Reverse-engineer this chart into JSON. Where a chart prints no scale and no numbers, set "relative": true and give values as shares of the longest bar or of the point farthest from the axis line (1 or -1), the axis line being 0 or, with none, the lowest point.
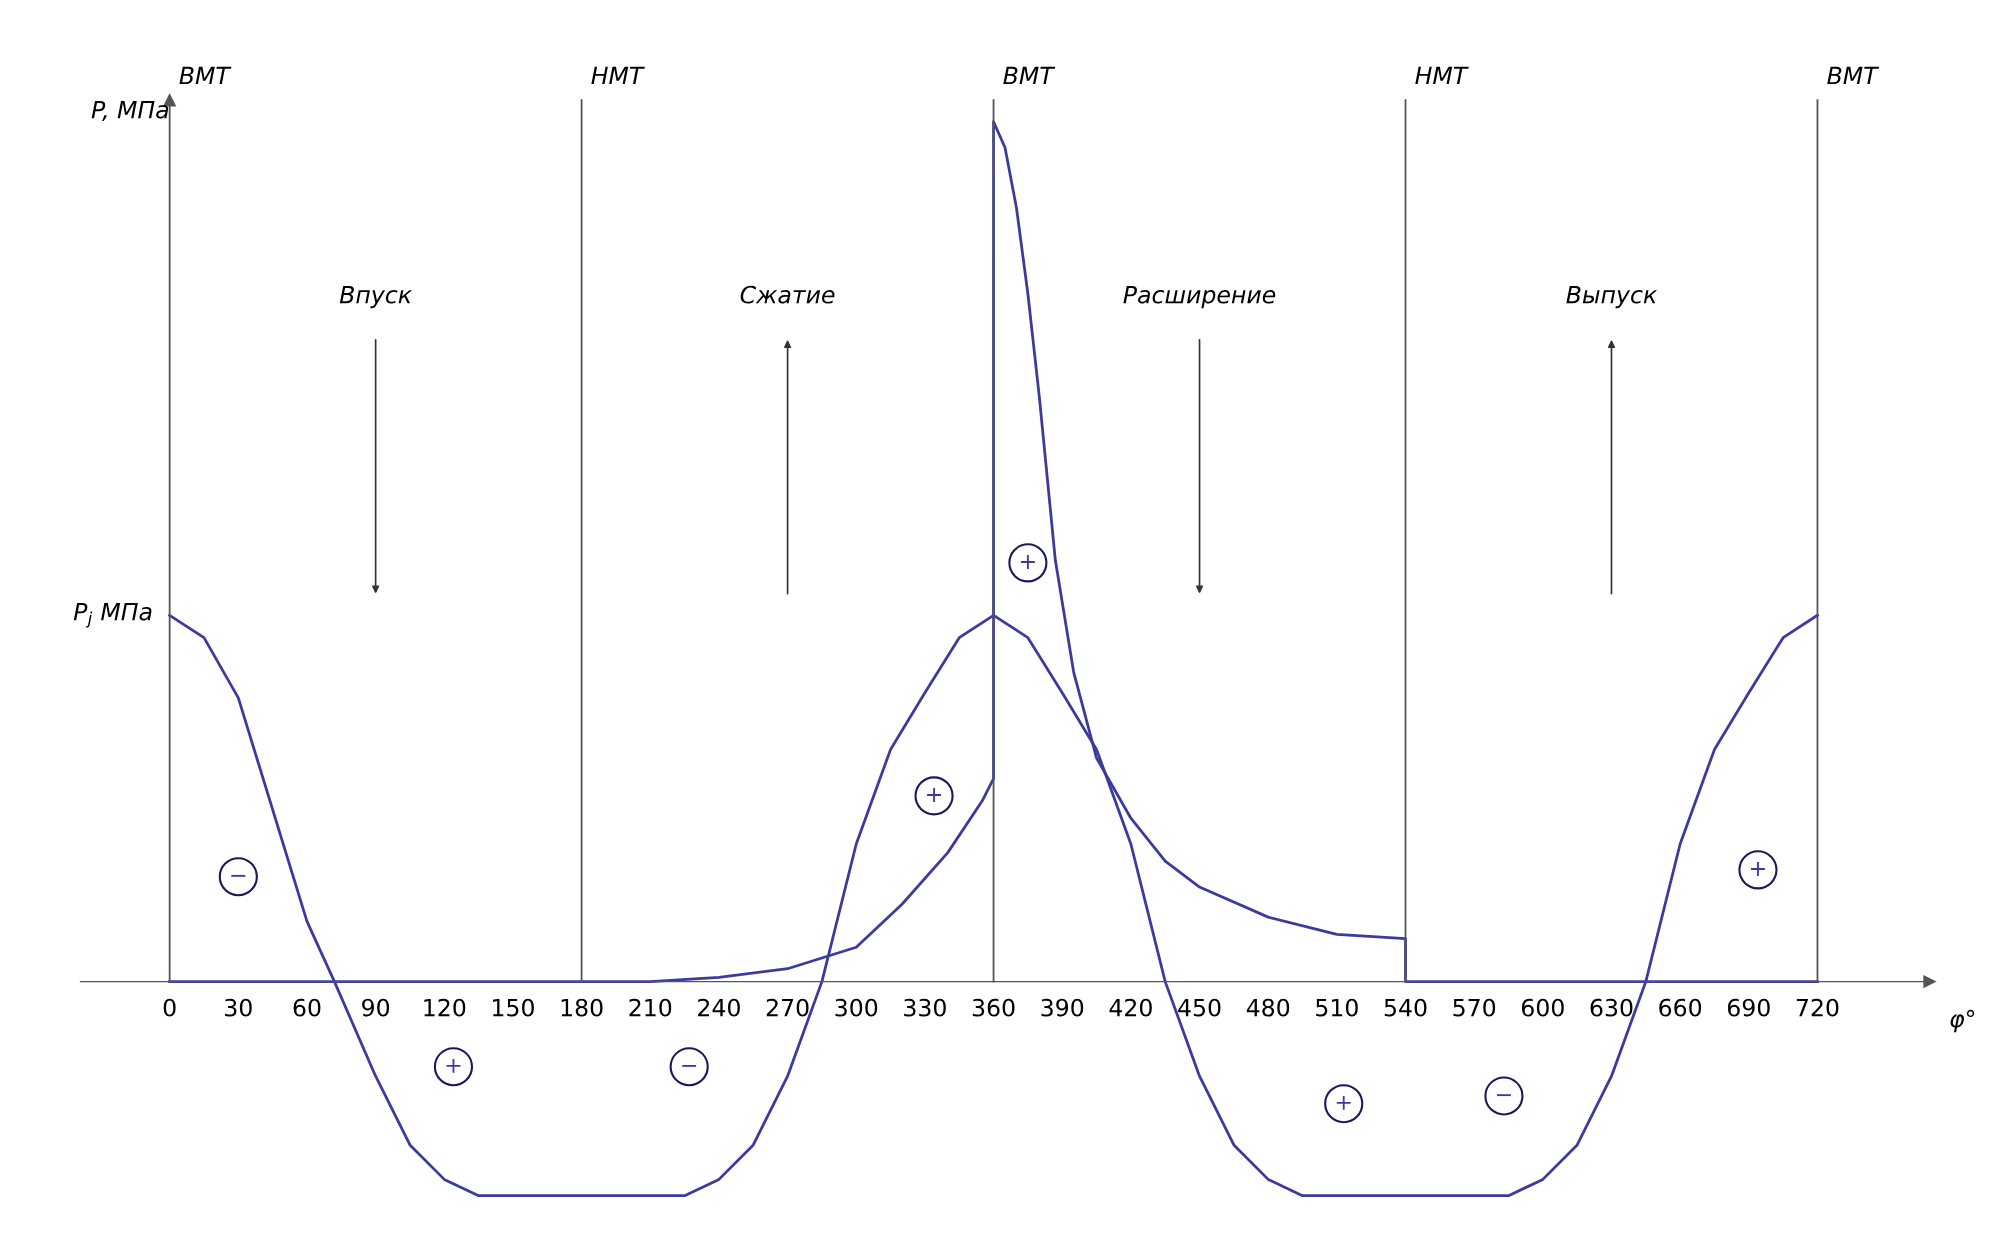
{
  "chart_data": {
    "type": "line",
    "relative": true,
    "xlabel": "φ°",
    "ylabel": "P, МПа",
    "xlim": [
      -39,
      769
    ],
    "xticks": [
      0,
      30,
      60,
      90,
      120,
      150,
      180,
      210,
      240,
      270,
      300,
      330,
      360,
      390,
      420,
      450,
      480,
      510,
      540,
      570,
      600,
      630,
      660,
      690,
      720
    ],
    "grid": false,
    "legend": false,
    "marker": "none",
    "line_style": "solid",
    "series": [
      {
        "color": "#3b3b9e",
        "x": [
          0,
          15,
          30,
          45,
          54,
          60,
          72,
          90,
          105,
          120,
          135,
          180,
          225,
          240,
          255,
          270,
          285,
          300,
          315,
          330,
          345,
          360,
          375,
          390,
          405,
          420,
          435,
          450,
          465,
          480,
          495,
          540,
          585,
          600,
          615,
          630,
          645,
          660,
          675,
          690,
          705,
          720
        ],
        "values": [
          0.426,
          0.4,
          0.33,
          0.2,
          0.122,
          0.07,
          0,
          -0.11,
          -0.19,
          -0.23,
          -0.249,
          -0.249,
          -0.249,
          -0.23,
          -0.19,
          -0.11,
          0,
          0.16,
          0.27,
          0.336,
          0.4,
          0.426,
          0.4,
          0.336,
          0.27,
          0.16,
          0,
          -0.11,
          -0.19,
          -0.23,
          -0.249,
          -0.249,
          -0.249,
          -0.23,
          -0.19,
          -0.11,
          0,
          0.16,
          0.27,
          0.336,
          0.4,
          0.426
        ]
      },
      {
        "color": "#3b3b9e",
        "x": [
          0,
          180,
          210,
          240,
          270,
          300,
          320,
          340,
          355,
          360,
          360,
          365,
          370,
          375,
          380,
          387,
          395,
          405,
          420,
          435,
          450,
          480,
          510,
          540,
          540,
          720
        ],
        "values": [
          0,
          0,
          0,
          0.005,
          0.015,
          0.04,
          0.09,
          0.15,
          0.21,
          0.236,
          1.0,
          0.97,
          0.9,
          0.8,
          0.68,
          0.49,
          0.36,
          0.26,
          0.19,
          0.14,
          0.11,
          0.075,
          0.055,
          0.05,
          0,
          0
        ]
      }
    ],
    "ref_lines": [
      {
        "axis": "x",
        "value": 0,
        "label": "ВМТ",
        "color": "#555555"
      },
      {
        "axis": "x",
        "value": 180,
        "label": "НМТ",
        "color": "#555555"
      },
      {
        "axis": "x",
        "value": 360,
        "label": "ВМТ",
        "color": "#555555"
      },
      {
        "axis": "x",
        "value": 540,
        "label": "НМТ",
        "color": "#555555"
      },
      {
        "axis": "x",
        "value": 720,
        "label": "ВМТ",
        "color": "#555555"
      }
    ],
    "annotations": [
      "Впуск",
      "Сжатие",
      "Расширение",
      "Выпуск",
      {
        "text": "P$_{j}$ МПа",
        "x": 0,
        "y": 0.426
      },
      {
        "text": "−",
        "x": 30,
        "y": 0.122
      },
      {
        "text": "+",
        "x": 124,
        "y": -0.099
      },
      {
        "text": "−",
        "x": 227,
        "y": -0.099
      },
      {
        "text": "+",
        "x": 334,
        "y": 0.216
      },
      {
        "text": "+",
        "x": 375,
        "y": 0.487
      },
      {
        "text": "+",
        "x": 513,
        "y": -0.142
      },
      {
        "text": "−",
        "x": 583,
        "y": -0.133
      },
      {
        "text": "+",
        "x": 694,
        "y": 0.13
      }
    ]
  }
}
